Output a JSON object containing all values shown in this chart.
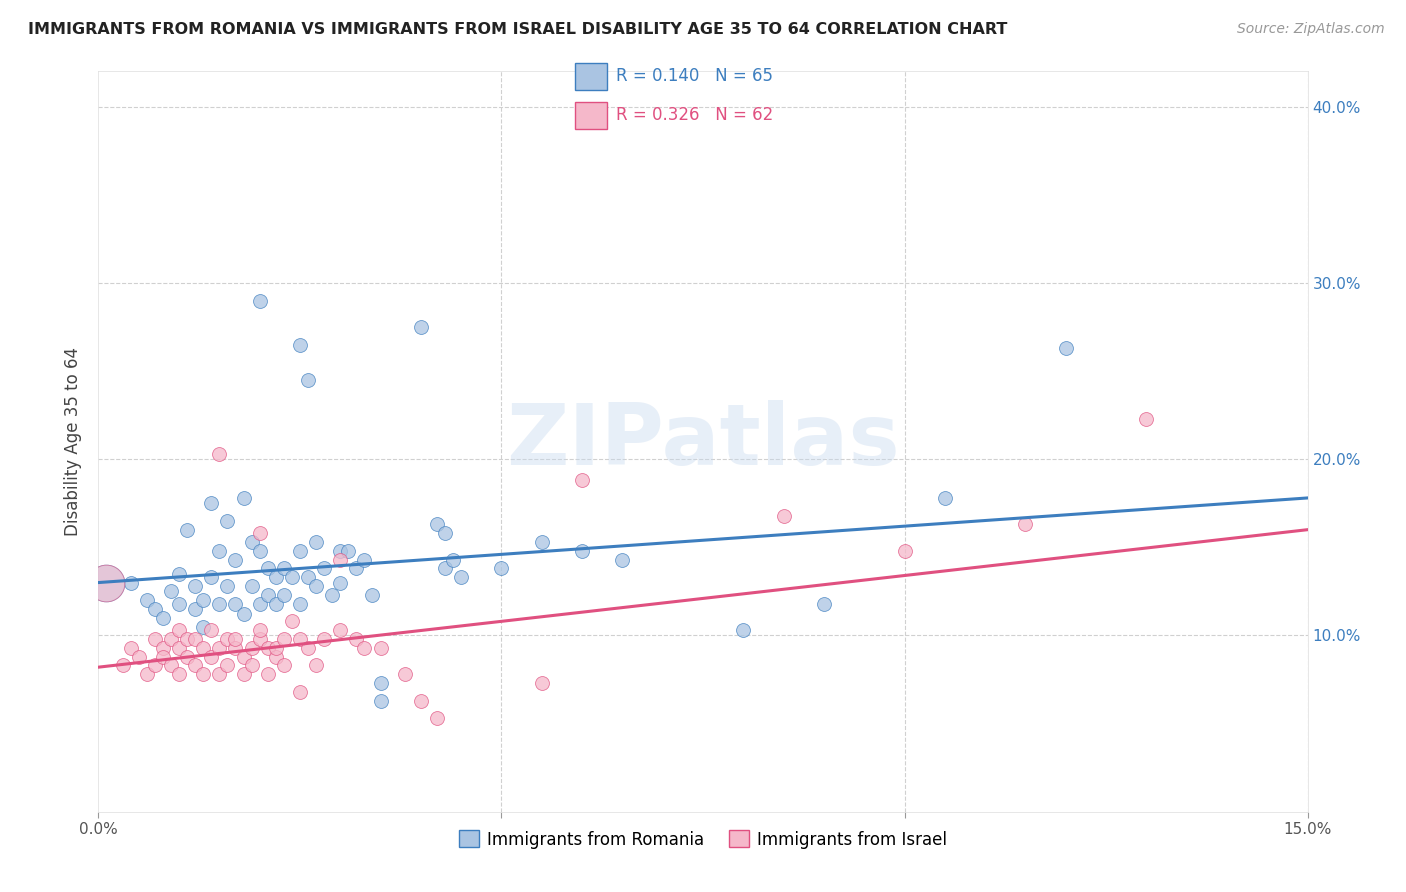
{
  "title": "IMMIGRANTS FROM ROMANIA VS IMMIGRANTS FROM ISRAEL DISABILITY AGE 35 TO 64 CORRELATION CHART",
  "source": "Source: ZipAtlas.com",
  "ylabel": "Disability Age 35 to 64",
  "xlim": [
    0.0,
    0.15
  ],
  "ylim": [
    0.0,
    0.42
  ],
  "xticks": [
    0.0,
    0.05,
    0.1,
    0.15
  ],
  "xticklabels": [
    "0.0%",
    "",
    "",
    "15.0%"
  ],
  "yticks": [
    0.0,
    0.1,
    0.2,
    0.3,
    0.4
  ],
  "right_yticklabels": [
    "",
    "10.0%",
    "20.0%",
    "30.0%",
    "40.0%"
  ],
  "romania_color": "#aac4e2",
  "romania_line_color": "#3d7ebf",
  "israel_color": "#f5b8ca",
  "israel_line_color": "#e05080",
  "romania_scatter": [
    [
      0.004,
      0.13
    ],
    [
      0.006,
      0.12
    ],
    [
      0.007,
      0.115
    ],
    [
      0.008,
      0.11
    ],
    [
      0.009,
      0.125
    ],
    [
      0.01,
      0.135
    ],
    [
      0.01,
      0.118
    ],
    [
      0.011,
      0.16
    ],
    [
      0.012,
      0.115
    ],
    [
      0.012,
      0.128
    ],
    [
      0.013,
      0.12
    ],
    [
      0.013,
      0.105
    ],
    [
      0.014,
      0.175
    ],
    [
      0.014,
      0.133
    ],
    [
      0.015,
      0.148
    ],
    [
      0.015,
      0.118
    ],
    [
      0.016,
      0.165
    ],
    [
      0.016,
      0.128
    ],
    [
      0.017,
      0.143
    ],
    [
      0.017,
      0.118
    ],
    [
      0.018,
      0.178
    ],
    [
      0.018,
      0.112
    ],
    [
      0.019,
      0.153
    ],
    [
      0.019,
      0.128
    ],
    [
      0.02,
      0.29
    ],
    [
      0.02,
      0.148
    ],
    [
      0.02,
      0.118
    ],
    [
      0.021,
      0.138
    ],
    [
      0.021,
      0.123
    ],
    [
      0.022,
      0.133
    ],
    [
      0.022,
      0.118
    ],
    [
      0.023,
      0.138
    ],
    [
      0.023,
      0.123
    ],
    [
      0.024,
      0.133
    ],
    [
      0.025,
      0.265
    ],
    [
      0.025,
      0.148
    ],
    [
      0.025,
      0.118
    ],
    [
      0.026,
      0.245
    ],
    [
      0.026,
      0.133
    ],
    [
      0.027,
      0.153
    ],
    [
      0.027,
      0.128
    ],
    [
      0.028,
      0.138
    ],
    [
      0.029,
      0.123
    ],
    [
      0.03,
      0.148
    ],
    [
      0.03,
      0.13
    ],
    [
      0.031,
      0.148
    ],
    [
      0.032,
      0.138
    ],
    [
      0.033,
      0.143
    ],
    [
      0.034,
      0.123
    ],
    [
      0.035,
      0.073
    ],
    [
      0.035,
      0.063
    ],
    [
      0.04,
      0.275
    ],
    [
      0.042,
      0.163
    ],
    [
      0.043,
      0.158
    ],
    [
      0.043,
      0.138
    ],
    [
      0.044,
      0.143
    ],
    [
      0.045,
      0.133
    ],
    [
      0.05,
      0.138
    ],
    [
      0.055,
      0.153
    ],
    [
      0.06,
      0.148
    ],
    [
      0.065,
      0.143
    ],
    [
      0.08,
      0.103
    ],
    [
      0.09,
      0.118
    ],
    [
      0.105,
      0.178
    ],
    [
      0.12,
      0.263
    ]
  ],
  "israel_scatter": [
    [
      0.003,
      0.083
    ],
    [
      0.004,
      0.093
    ],
    [
      0.005,
      0.088
    ],
    [
      0.006,
      0.078
    ],
    [
      0.007,
      0.098
    ],
    [
      0.007,
      0.083
    ],
    [
      0.008,
      0.093
    ],
    [
      0.008,
      0.088
    ],
    [
      0.009,
      0.098
    ],
    [
      0.009,
      0.083
    ],
    [
      0.01,
      0.093
    ],
    [
      0.01,
      0.078
    ],
    [
      0.01,
      0.103
    ],
    [
      0.011,
      0.088
    ],
    [
      0.011,
      0.098
    ],
    [
      0.012,
      0.083
    ],
    [
      0.012,
      0.098
    ],
    [
      0.013,
      0.093
    ],
    [
      0.013,
      0.078
    ],
    [
      0.014,
      0.088
    ],
    [
      0.014,
      0.103
    ],
    [
      0.015,
      0.093
    ],
    [
      0.015,
      0.078
    ],
    [
      0.015,
      0.203
    ],
    [
      0.016,
      0.098
    ],
    [
      0.016,
      0.083
    ],
    [
      0.017,
      0.093
    ],
    [
      0.017,
      0.098
    ],
    [
      0.018,
      0.088
    ],
    [
      0.018,
      0.078
    ],
    [
      0.019,
      0.093
    ],
    [
      0.019,
      0.083
    ],
    [
      0.02,
      0.098
    ],
    [
      0.02,
      0.103
    ],
    [
      0.02,
      0.158
    ],
    [
      0.021,
      0.093
    ],
    [
      0.021,
      0.078
    ],
    [
      0.022,
      0.088
    ],
    [
      0.022,
      0.093
    ],
    [
      0.023,
      0.098
    ],
    [
      0.023,
      0.083
    ],
    [
      0.024,
      0.108
    ],
    [
      0.025,
      0.098
    ],
    [
      0.025,
      0.068
    ],
    [
      0.026,
      0.093
    ],
    [
      0.027,
      0.083
    ],
    [
      0.028,
      0.098
    ],
    [
      0.03,
      0.103
    ],
    [
      0.03,
      0.143
    ],
    [
      0.032,
      0.098
    ],
    [
      0.033,
      0.093
    ],
    [
      0.035,
      0.093
    ],
    [
      0.038,
      0.078
    ],
    [
      0.04,
      0.063
    ],
    [
      0.042,
      0.053
    ],
    [
      0.055,
      0.073
    ],
    [
      0.06,
      0.188
    ],
    [
      0.085,
      0.168
    ],
    [
      0.1,
      0.148
    ],
    [
      0.115,
      0.163
    ],
    [
      0.13,
      0.223
    ]
  ],
  "romania_big_point": [
    0.001,
    0.13
  ],
  "israel_big_point": [
    0.001,
    0.13
  ],
  "watermark_text": "ZIPatlas",
  "background_color": "#ffffff",
  "grid_color": "#d0d0d0"
}
